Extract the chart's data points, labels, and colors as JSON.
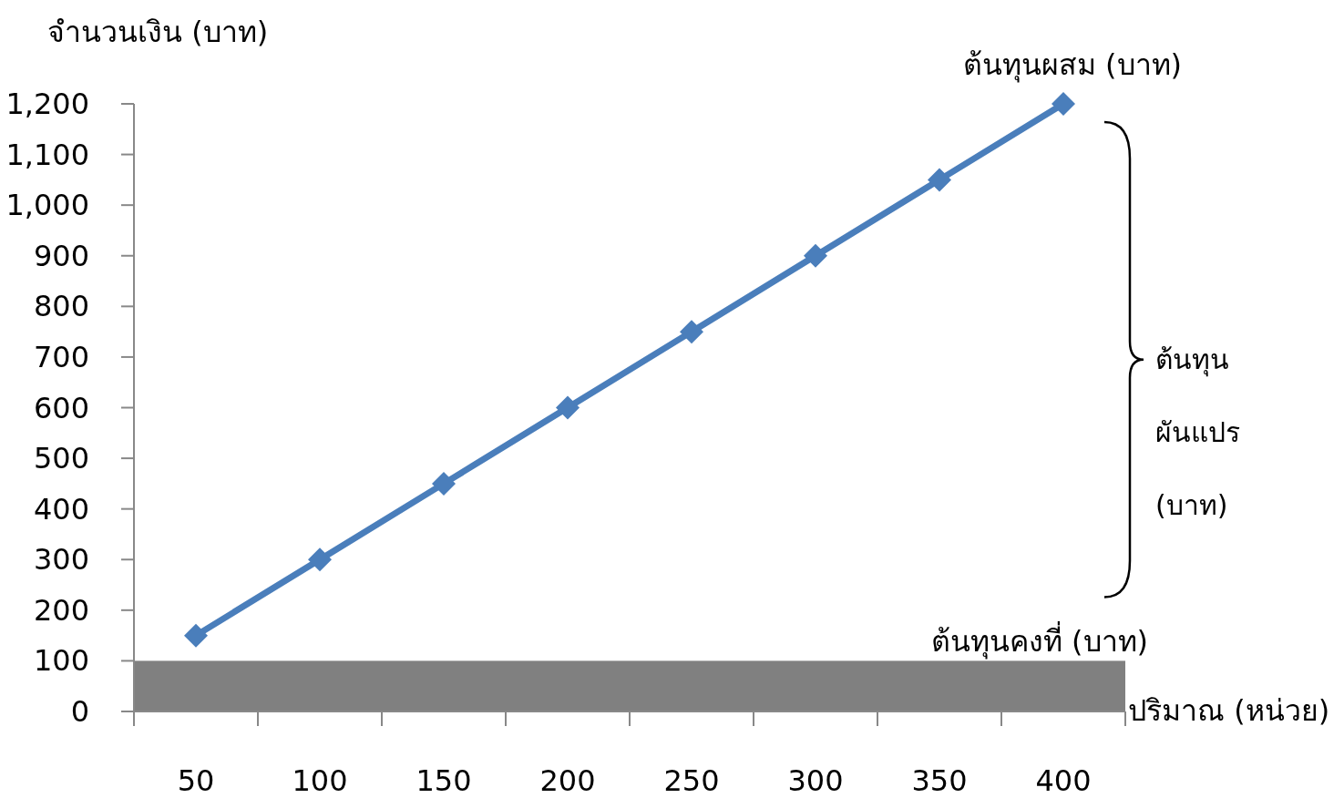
{
  "chart_data": {
    "type": "line",
    "xlabel": "ปริมาณ (หน่วย)",
    "ylabel": "จำนวนเงิน (บาท)",
    "categories": [
      "50",
      "100",
      "150",
      "200",
      "250",
      "300",
      "350",
      "400"
    ],
    "series": [
      {
        "name": "ต้นทุนผสม (บาท)",
        "color": "#4a7ebb",
        "values": [
          150,
          300,
          450,
          600,
          750,
          900,
          1050,
          1200
        ]
      }
    ],
    "ylim": [
      0,
      1200
    ],
    "yticks": [
      0,
      100,
      200,
      300,
      400,
      500,
      600,
      700,
      800,
      900,
      {
        "value": 1000,
        "label": "1,000"
      },
      {
        "value": 1100,
        "label": "1,100"
      },
      {
        "value": 1200,
        "label": "1,200"
      }
    ],
    "bands": [
      {
        "axis": "y",
        "from": 0,
        "to": 100,
        "label": "ต้นทุนคงที่ (บาท)",
        "color": "#808080"
      }
    ],
    "annotations": [
      "ต้นทุน ผันแปร (บาท)"
    ],
    "marker": "diamond",
    "line_style": "solid",
    "grid": false,
    "legend": false
  }
}
